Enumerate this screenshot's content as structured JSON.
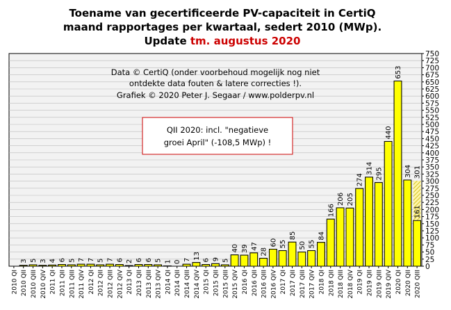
{
  "chart_data": {
    "type": "bar",
    "title_lines": [
      "Toename van gecertificeerde PV-capaciteit in CertiQ",
      "maand rapportages per kwartaal, sedert 2010 (MWp).",
      "Update"
    ],
    "title_accent": "tm. augustus 2020",
    "annotation_lines": [
      "Data © CertiQ (onder voorbehoud mogelijk nog niet",
      "ontdekte data fouten & latere correcties !).",
      "Grafiek © 2020 Peter J. Segaar / www.polderpv.nl"
    ],
    "callout_lines": [
      "QII 2020: incl. \"negatieve",
      "groei April\" (-108,5 MWp) !"
    ],
    "categories": [
      "2010 QI",
      "2010 QII",
      "2010 QIII",
      "2010 QIV",
      "2011 QI",
      "2011 QII",
      "2011 QIII",
      "2011 QIV",
      "2012 QI",
      "2012 QII",
      "2012 QIII",
      "2012 QIV",
      "2013 QI",
      "2013 QII",
      "2013 QIII",
      "2013 QIV",
      "2014 QI",
      "2014 QII",
      "2014 QIII",
      "2014 QIV",
      "2015 QI",
      "2015 QII",
      "2015 QIII",
      "2015 QIV",
      "2016 QI",
      "2016 QII",
      "2016 QIII",
      "2016 QIV",
      "2017 QI",
      "2017 QII",
      "2017 QIII",
      "2017 QIV",
      "2018 QI",
      "2018 QII",
      "2018 QIII",
      "2018 QIV",
      "2019 QI",
      "2019 QII",
      "2019 QIII",
      "2019 QIV",
      "2020 QI",
      "2020 QII",
      "2020 QIII"
    ],
    "values": [
      null,
      3,
      5,
      3,
      4,
      6,
      5,
      7,
      7,
      5,
      7,
      6,
      2,
      6,
      6,
      5,
      1,
      0,
      7,
      13,
      6,
      9,
      5,
      40,
      39,
      47,
      28,
      60,
      55,
      85,
      50,
      55,
      84,
      166,
      206,
      205,
      274,
      314,
      295,
      440,
      653,
      304,
      161
    ],
    "value_labels": [
      "",
      "3",
      "5",
      "3",
      "4",
      "6",
      "5",
      "7",
      "7",
      "5",
      "7",
      "6",
      "2",
      "6",
      "6",
      "5",
      "1",
      "0",
      "7",
      "13",
      "6",
      "9",
      "5",
      "40",
      "39",
      "47",
      "28",
      "60",
      "55",
      "85",
      "50",
      "55",
      "84",
      "166",
      "206",
      "205",
      "274",
      "314",
      "295",
      "440",
      "653",
      "304",
      "161"
    ],
    "partial_category": "2020 QIII",
    "partial_value": 301,
    "partial_label": "301",
    "highlight_label": "653",
    "ylim": [
      0,
      750
    ],
    "y_ticks": [
      0,
      25,
      50,
      75,
      100,
      125,
      150,
      175,
      200,
      225,
      250,
      275,
      300,
      325,
      350,
      375,
      400,
      425,
      450,
      475,
      500,
      525,
      550,
      575,
      600,
      625,
      650,
      675,
      700,
      725,
      750
    ],
    "y_axis_side": "right",
    "grid": true,
    "xlabel": "",
    "ylabel": "",
    "colors": {
      "bar_fill": "#ffff00",
      "bar_stroke": "#000000",
      "highlight_text": "#cc0000",
      "partial_label": "#aaaaaa",
      "partial_hatch": "#c8b400",
      "plot_bg": "#f2f2f2",
      "grid": "#bbbbbb",
      "callout_border": "#cc0000"
    }
  }
}
